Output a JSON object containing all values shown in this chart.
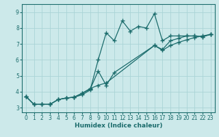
{
  "xlabel": "Humidex (Indice chaleur)",
  "bg_color": "#cce9ea",
  "grid_color": "#aad4d6",
  "line_color": "#1a6b6b",
  "xlim": [
    -0.5,
    23.5
  ],
  "ylim": [
    2.7,
    9.5
  ],
  "xticks": [
    0,
    1,
    2,
    3,
    4,
    5,
    6,
    7,
    8,
    9,
    10,
    11,
    12,
    13,
    14,
    15,
    16,
    17,
    18,
    19,
    20,
    21,
    22,
    23
  ],
  "yticks": [
    3,
    4,
    5,
    6,
    7,
    8,
    9
  ],
  "line1_x": [
    0,
    1,
    2,
    3,
    4,
    5,
    6,
    7,
    8,
    9,
    10,
    11,
    12,
    13,
    14,
    15,
    16,
    17,
    18,
    19,
    20,
    21,
    22,
    23
  ],
  "line1_y": [
    3.7,
    3.2,
    3.2,
    3.2,
    3.5,
    3.6,
    3.65,
    3.8,
    4.1,
    6.0,
    7.7,
    7.2,
    8.45,
    7.8,
    8.1,
    8.0,
    8.9,
    7.2,
    7.5,
    7.5,
    7.5,
    7.5,
    7.45,
    7.6
  ],
  "line2_x": [
    0,
    1,
    2,
    3,
    4,
    5,
    6,
    7,
    8,
    9,
    10,
    11,
    16,
    17,
    18,
    19,
    20,
    21,
    22,
    23
  ],
  "line2_y": [
    3.7,
    3.2,
    3.2,
    3.2,
    3.5,
    3.6,
    3.65,
    3.9,
    4.15,
    5.3,
    4.4,
    5.2,
    6.9,
    6.65,
    7.2,
    7.35,
    7.5,
    7.5,
    7.45,
    7.6
  ],
  "line3_x": [
    0,
    1,
    2,
    3,
    4,
    5,
    6,
    7,
    8,
    9,
    10,
    16,
    17,
    18,
    19,
    20,
    21,
    22,
    23
  ],
  "line3_y": [
    3.7,
    3.2,
    3.2,
    3.2,
    3.5,
    3.6,
    3.65,
    3.9,
    4.2,
    4.4,
    4.55,
    6.9,
    6.6,
    6.9,
    7.1,
    7.25,
    7.4,
    7.5,
    7.6
  ]
}
